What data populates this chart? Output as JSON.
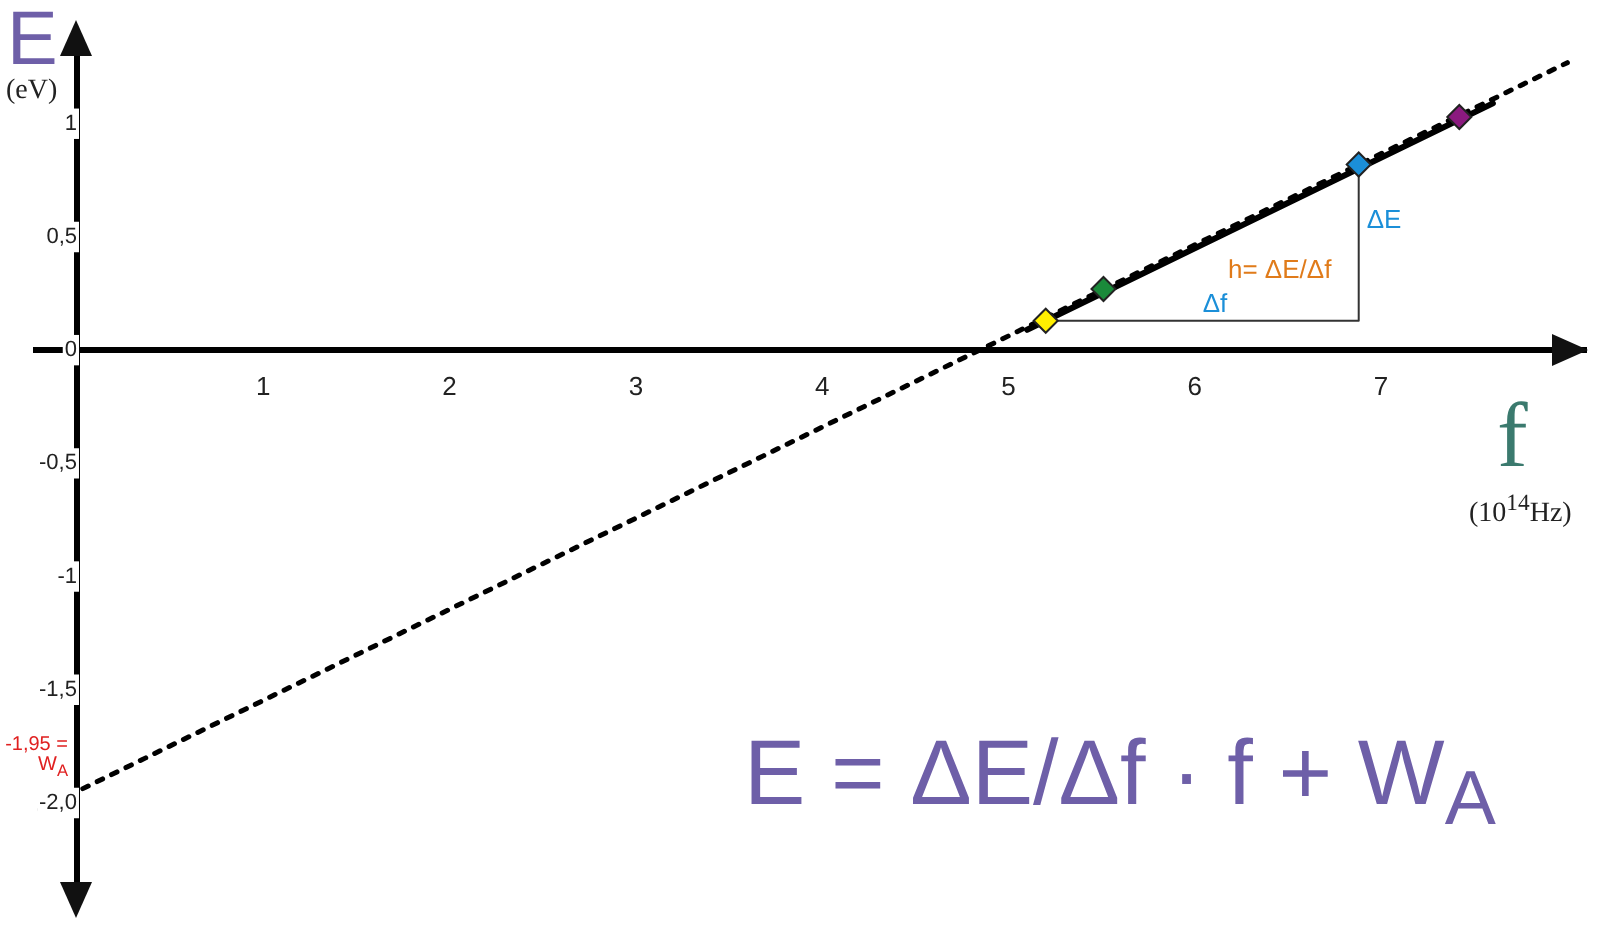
{
  "chart_data": {
    "type": "scatter",
    "xlabel": "f (10$^{14}$Hz)",
    "ylabel": "E (eV)",
    "xlim": [
      -0.22,
      8.1
    ],
    "ylim": [
      -2.45,
      1.4
    ],
    "xticks": [
      1,
      2,
      3,
      4,
      5,
      6,
      7
    ],
    "yticks": [
      {
        "value": 1,
        "label": "1"
      },
      {
        "value": 0.5,
        "label": "0,5"
      },
      {
        "value": 0,
        "label": "0"
      },
      {
        "value": -0.5,
        "label": "-0,5"
      },
      {
        "value": -1,
        "label": "-1"
      },
      {
        "value": -1.5,
        "label": "-1,5"
      },
      {
        "value": -2,
        "label": "-2,0"
      }
    ],
    "grid": false,
    "legend": false,
    "marker": "diamond",
    "series": [
      {
        "type": "line",
        "color": "#000000",
        "line_style": "dotted",
        "marker": "none",
        "x": [
          -0.2,
          8.0
        ],
        "values": [
          -2.03,
          1.27
        ]
      },
      {
        "type": "line",
        "color": "#000000",
        "line_style": "solid",
        "marker": "none",
        "x": [
          5.1,
          7.6
        ],
        "values": [
          0.09,
          1.09
        ]
      },
      {
        "type": "line",
        "color": "#333333",
        "line_style": "solid",
        "marker": "none",
        "x": [
          5.2,
          6.88,
          6.88
        ],
        "values": [
          0.13,
          0.13,
          0.82
        ]
      },
      {
        "colors": [
          "#ffef00",
          "#1a8a3a",
          "#1b8fd8",
          "#8b1a7f"
        ],
        "x": [
          5.2,
          5.51,
          6.88,
          7.42
        ],
        "values": [
          0.13,
          0.27,
          0.82,
          1.03
        ]
      }
    ],
    "annotations": [
      {
        "text": "-1,95 = W$_{A}$",
        "x": 0,
        "y": -1.95
      },
      {
        "text": "ΔE",
        "x": 6.88,
        "y": 0.5
      },
      {
        "text": "Δf",
        "x": 6.0,
        "y": 0.13
      },
      "h= ΔE/Δf",
      "E = ΔE/Δf · f + W$_{A}$"
    ]
  }
}
